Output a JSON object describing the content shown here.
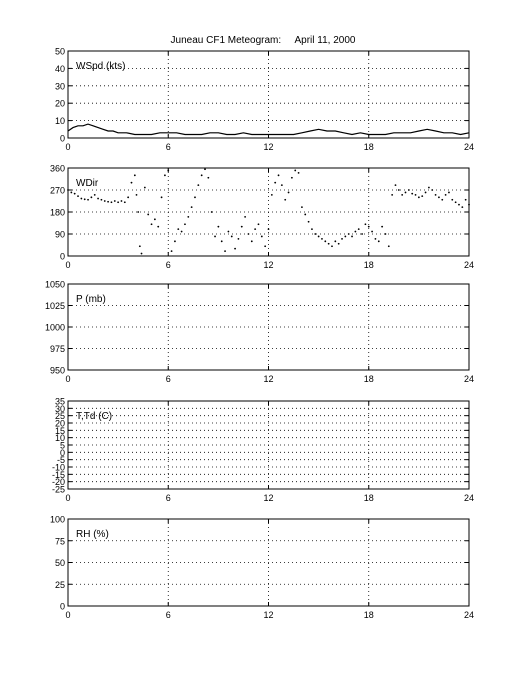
{
  "title": "Juneau CF1 Meteogram:     April 11, 2000",
  "chart_data": [
    {
      "type": "line",
      "panel_label": "WSpd (kts)",
      "xlim": [
        0,
        24
      ],
      "ylim": [
        0,
        50
      ],
      "x_ticks": [
        "0",
        "6",
        "12",
        "18",
        "24"
      ],
      "y_ticks": [
        "0",
        "10",
        "20",
        "30",
        "40",
        "50"
      ],
      "grid": true,
      "series": [
        {
          "x": [
            0,
            0.3,
            0.6,
            0.9,
            1.2,
            1.5,
            1.8,
            2.1,
            2.4,
            2.7,
            3.0,
            3.5,
            4.0,
            4.5,
            5.0,
            5.5,
            6.0,
            6.5,
            7.0,
            7.5,
            8.0,
            8.5,
            9.0,
            9.5,
            10.0,
            10.5,
            11.0,
            11.5,
            12.0,
            12.5,
            13.0,
            13.5,
            14.0,
            14.5,
            15.0,
            15.5,
            16.0,
            16.5,
            17.0,
            17.5,
            18.0,
            18.5,
            19.0,
            19.5,
            20.0,
            20.5,
            21.0,
            21.5,
            22.0,
            22.5,
            23.0,
            23.5,
            24.0
          ],
          "y": [
            4,
            6,
            7,
            7,
            8,
            7,
            6,
            5,
            4,
            4,
            3,
            3,
            2,
            2,
            2,
            3,
            3,
            3,
            2,
            2,
            2,
            3,
            3,
            2,
            2,
            3,
            2,
            2,
            2,
            2,
            2,
            2,
            3,
            4,
            5,
            4,
            4,
            3,
            2,
            3,
            2,
            2,
            2,
            3,
            3,
            3,
            4,
            5,
            4,
            3,
            3,
            2,
            3
          ]
        }
      ]
    },
    {
      "type": "scatter",
      "panel_label": "WDir",
      "xlim": [
        0,
        24
      ],
      "ylim": [
        0,
        360
      ],
      "x_ticks": [
        "0",
        "6",
        "12",
        "18",
        "24"
      ],
      "y_ticks": [
        "0",
        "90",
        "180",
        "270",
        "360"
      ],
      "grid": true,
      "series": [
        {
          "x": [
            0.0,
            0.2,
            0.4,
            0.6,
            0.8,
            1.0,
            1.2,
            1.4,
            1.6,
            1.8,
            2.0,
            2.2,
            2.4,
            2.6,
            2.8,
            3.0,
            3.2,
            3.4,
            3.6,
            3.8,
            4.0,
            4.1,
            4.2,
            4.3,
            4.4,
            4.6,
            4.8,
            5.0,
            5.2,
            5.4,
            5.6,
            5.8,
            6.0,
            6.2,
            6.4,
            6.6,
            6.8,
            7.0,
            7.2,
            7.4,
            7.6,
            7.8,
            8.0,
            8.2,
            8.4,
            8.6,
            8.8,
            9.0,
            9.2,
            9.4,
            9.6,
            9.8,
            10.0,
            10.2,
            10.4,
            10.6,
            10.8,
            11.0,
            11.2,
            11.4,
            11.6,
            11.8,
            12.0,
            12.2,
            12.4,
            12.6,
            12.8,
            13.0,
            13.2,
            13.4,
            13.6,
            13.8,
            14.0,
            14.2,
            14.4,
            14.6,
            14.8,
            15.0,
            15.2,
            15.4,
            15.6,
            15.8,
            16.0,
            16.2,
            16.4,
            16.6,
            16.8,
            17.0,
            17.2,
            17.4,
            17.6,
            17.8,
            18.0,
            18.2,
            18.4,
            18.6,
            18.8,
            19.0,
            19.2,
            19.4,
            19.6,
            19.8,
            20.0,
            20.2,
            20.4,
            20.6,
            20.8,
            21.0,
            21.2,
            21.4,
            21.6,
            21.8,
            22.0,
            22.2,
            22.4,
            22.6,
            22.8,
            23.0,
            23.2,
            23.4,
            23.6,
            23.8,
            24.0
          ],
          "y": [
            270,
            260,
            255,
            245,
            235,
            232,
            230,
            240,
            250,
            235,
            230,
            225,
            222,
            220,
            225,
            220,
            225,
            220,
            240,
            300,
            330,
            250,
            180,
            40,
            10,
            280,
            170,
            130,
            150,
            120,
            240,
            330,
            350,
            20,
            60,
            110,
            100,
            130,
            160,
            200,
            240,
            290,
            330,
            355,
            320,
            180,
            80,
            120,
            60,
            20,
            100,
            80,
            30,
            70,
            120,
            160,
            90,
            60,
            110,
            130,
            80,
            40,
            110,
            250,
            300,
            330,
            290,
            230,
            260,
            320,
            350,
            340,
            200,
            170,
            140,
            110,
            90,
            80,
            70,
            60,
            50,
            40,
            60,
            50,
            70,
            80,
            90,
            80,
            100,
            110,
            90,
            130,
            120,
            100,
            70,
            60,
            120,
            90,
            40,
            250,
            290,
            270,
            250,
            260,
            270,
            255,
            250,
            240,
            245,
            260,
            280,
            270,
            250,
            240,
            230,
            250,
            260,
            230,
            220,
            210,
            200,
            230,
            210
          ]
        }
      ]
    },
    {
      "type": "line",
      "panel_label": "P (mb)",
      "xlim": [
        0,
        24
      ],
      "ylim": [
        950,
        1050
      ],
      "x_ticks": [
        "0",
        "6",
        "12",
        "18",
        "24"
      ],
      "y_ticks": [
        "950",
        "975",
        "1000",
        "1025",
        "1050"
      ],
      "grid": true,
      "series": []
    },
    {
      "type": "line",
      "panel_label": "T,Td (C)",
      "xlim": [
        0,
        24
      ],
      "ylim": [
        -25,
        35
      ],
      "x_ticks": [
        "0",
        "6",
        "12",
        "18",
        "24"
      ],
      "y_ticks": [
        "-25",
        "-15",
        "-5",
        "5",
        "15",
        "25",
        "35"
      ],
      "y_ticks_all": [
        "-25",
        "-20",
        "-15",
        "-10",
        "-5",
        "0",
        "5",
        "10",
        "15",
        "20",
        "25",
        "30",
        "35"
      ],
      "grid": true,
      "series": []
    },
    {
      "type": "line",
      "panel_label": "RH (%)",
      "xlim": [
        0,
        24
      ],
      "ylim": [
        0,
        100
      ],
      "x_ticks": [
        "0",
        "6",
        "12",
        "18",
        "24"
      ],
      "y_ticks": [
        "0",
        "25",
        "50",
        "75",
        "100"
      ],
      "grid": true,
      "series": []
    }
  ]
}
